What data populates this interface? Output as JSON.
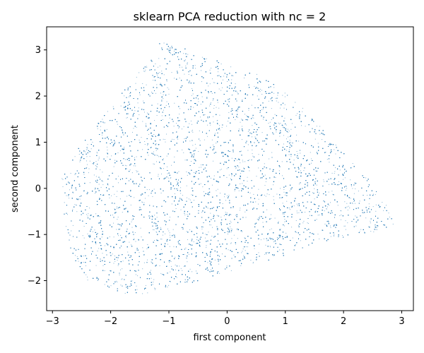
{
  "chart_data": {
    "type": "scatter",
    "title": "sklearn PCA reduction with nc = 2",
    "xlabel": "first component",
    "ylabel": "second component",
    "xlim": [
      -3.1,
      3.2
    ],
    "ylim": [
      -2.65,
      3.5
    ],
    "xticks": [
      -3,
      -2,
      -1,
      0,
      1,
      2,
      3
    ],
    "yticks": [
      -2,
      -1,
      0,
      1,
      2,
      3
    ],
    "xtick_labels": [
      "−3",
      "−2",
      "−1",
      "0",
      "1",
      "2",
      "3"
    ],
    "ytick_labels": [
      "−2",
      "−1",
      "0",
      "1",
      "2",
      "3"
    ],
    "grid": false,
    "point_color": "#1f77b4",
    "series": [
      {
        "points_description_only": false,
        "approximate_point_count": 20000,
        "cloud_outline": [
          [
            -2.85,
            0.2
          ],
          [
            -2.6,
            0.8
          ],
          [
            -2.3,
            1.3
          ],
          [
            -2.0,
            1.8
          ],
          [
            -1.7,
            2.3
          ],
          [
            -1.4,
            2.7
          ],
          [
            -1.15,
            3.2
          ],
          [
            -0.9,
            3.15
          ],
          [
            -0.5,
            2.9
          ],
          [
            0.0,
            2.7
          ],
          [
            0.5,
            2.5
          ],
          [
            1.0,
            2.1
          ],
          [
            1.5,
            1.5
          ],
          [
            2.0,
            0.8
          ],
          [
            2.5,
            0.1
          ],
          [
            2.8,
            -0.5
          ],
          [
            2.9,
            -0.8
          ],
          [
            2.5,
            -0.95
          ],
          [
            2.0,
            -1.05
          ],
          [
            1.5,
            -1.2
          ],
          [
            1.0,
            -1.45
          ],
          [
            0.5,
            -1.65
          ],
          [
            0.0,
            -1.8
          ],
          [
            -0.5,
            -2.0
          ],
          [
            -1.0,
            -2.15
          ],
          [
            -1.5,
            -2.3
          ],
          [
            -2.0,
            -2.25
          ],
          [
            -2.4,
            -2.0
          ],
          [
            -2.65,
            -1.5
          ],
          [
            -2.8,
            -0.8
          ]
        ]
      }
    ]
  }
}
